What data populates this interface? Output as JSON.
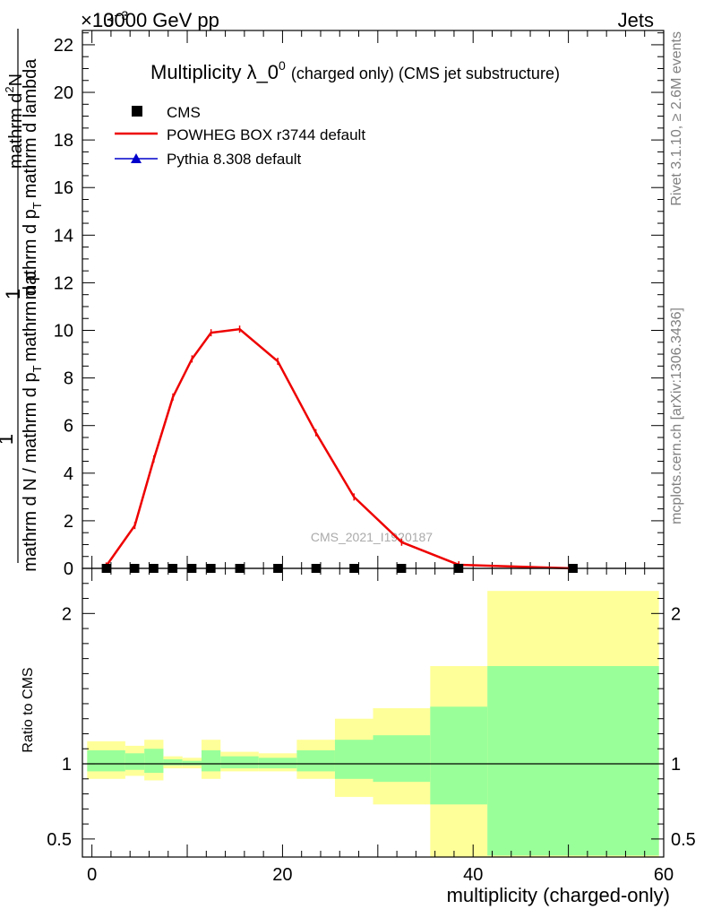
{
  "header": {
    "left": "13000 GeV pp",
    "right": "Jets",
    "exponent": "×10",
    "exponent_power": "−3"
  },
  "title": {
    "main": "Multiplicity λ_0",
    "superscript": "0",
    "suffix": "(charged only) (CMS jet substructure)"
  },
  "side_labels": {
    "rivet": "Rivet 3.1.10, ≥ 2.6M events",
    "mcplots": "mcplots.cern.ch [arXiv:1306.3436]"
  },
  "watermark": "CMS_2021_I1920187",
  "y_axis_label": {
    "prefix": "1",
    "denominator": "mathrm d N / mathrm d p",
    "denominator_sub": "T",
    "denominator_tail": "mathrm d p",
    "numerator": "mathrm d",
    "numerator_sup": "2",
    "numerator_tail": "N",
    "d2_denominator": "mathrm d p",
    "d2_sub": "T",
    "d2_tail": "mathrm d lambda"
  },
  "ratio_label": "Ratio to CMS",
  "x_axis_label": "multiplicity (charged-only)",
  "legend": [
    {
      "name": "CMS",
      "color": "#000000",
      "marker": "square"
    },
    {
      "name": "POWHEG BOX r3744 default",
      "color": "#ee0000",
      "marker": "line"
    },
    {
      "name": "Pythia 8.308 default",
      "color": "#0000cc",
      "marker": "triangle"
    }
  ],
  "chart_data": {
    "type": "line",
    "x_range": [
      -1,
      60
    ],
    "upper_y_range": [
      0,
      22.6
    ],
    "upper_y_ticks": [
      0,
      2,
      4,
      6,
      8,
      10,
      12,
      14,
      16,
      18,
      20,
      22
    ],
    "x_ticks": [
      0,
      20,
      40,
      60
    ],
    "ratio_y_range": [
      0.38,
      2.3
    ],
    "ratio_y_ticks": [
      0.5,
      1,
      2
    ],
    "powheg": {
      "x": [
        1.5,
        4.5,
        6.5,
        8.5,
        10.5,
        12.5,
        15.5,
        19.5,
        23.5,
        27.5,
        32.5,
        38.5,
        50.5
      ],
      "y": [
        0.1,
        1.8,
        4.6,
        7.2,
        8.8,
        9.9,
        10.05,
        8.7,
        5.7,
        3.0,
        1.1,
        0.15,
        0.0
      ]
    },
    "cms": {
      "x": [
        1.5,
        4.5,
        6.5,
        8.5,
        10.5,
        12.5,
        15.5,
        19.5,
        23.5,
        27.5,
        32.5,
        38.5,
        50.5
      ],
      "y": [
        0.0,
        0.0,
        0.0,
        0.0,
        0.0,
        0.0,
        0.0,
        0.0,
        0.0,
        0.0,
        0.0,
        0.0,
        0.0
      ]
    },
    "ratio_bands": [
      {
        "x0": -0.5,
        "x1": 3.5,
        "yellow": [
          0.9,
          1.15
        ],
        "green": [
          0.95,
          1.09
        ]
      },
      {
        "x0": 3.5,
        "x1": 5.5,
        "yellow": [
          0.92,
          1.12
        ],
        "green": [
          0.96,
          1.07
        ]
      },
      {
        "x0": 5.5,
        "x1": 7.5,
        "yellow": [
          0.89,
          1.16
        ],
        "green": [
          0.94,
          1.1
        ]
      },
      {
        "x0": 7.5,
        "x1": 9.5,
        "yellow": [
          0.97,
          1.05
        ],
        "green": [
          0.99,
          1.03
        ]
      },
      {
        "x0": 9.5,
        "x1": 11.5,
        "yellow": [
          0.97,
          1.04
        ],
        "green": [
          0.99,
          1.02
        ]
      },
      {
        "x0": 11.5,
        "x1": 13.5,
        "yellow": [
          0.9,
          1.16
        ],
        "green": [
          0.95,
          1.09
        ]
      },
      {
        "x0": 13.5,
        "x1": 17.5,
        "yellow": [
          0.95,
          1.08
        ],
        "green": [
          0.97,
          1.05
        ]
      },
      {
        "x0": 17.5,
        "x1": 21.5,
        "yellow": [
          0.95,
          1.07
        ],
        "green": [
          0.97,
          1.04
        ]
      },
      {
        "x0": 21.5,
        "x1": 25.5,
        "yellow": [
          0.9,
          1.16
        ],
        "green": [
          0.95,
          1.09
        ]
      },
      {
        "x0": 25.5,
        "x1": 29.5,
        "yellow": [
          0.78,
          1.3
        ],
        "green": [
          0.9,
          1.16
        ]
      },
      {
        "x0": 29.5,
        "x1": 35.5,
        "yellow": [
          0.73,
          1.37
        ],
        "green": [
          0.88,
          1.19
        ]
      },
      {
        "x0": 35.5,
        "x1": 41.5,
        "yellow": [
          0.38,
          1.65
        ],
        "green": [
          0.73,
          1.38
        ]
      },
      {
        "x0": 41.5,
        "x1": 59.5,
        "yellow": [
          0.38,
          2.15
        ],
        "green": [
          0.39,
          1.65
        ]
      }
    ],
    "colors": {
      "powheg": "#ee0000",
      "pythia": "#0000cc",
      "cms": "#000000",
      "band_yellow": "#ffff99",
      "band_green": "#99ff99"
    }
  }
}
